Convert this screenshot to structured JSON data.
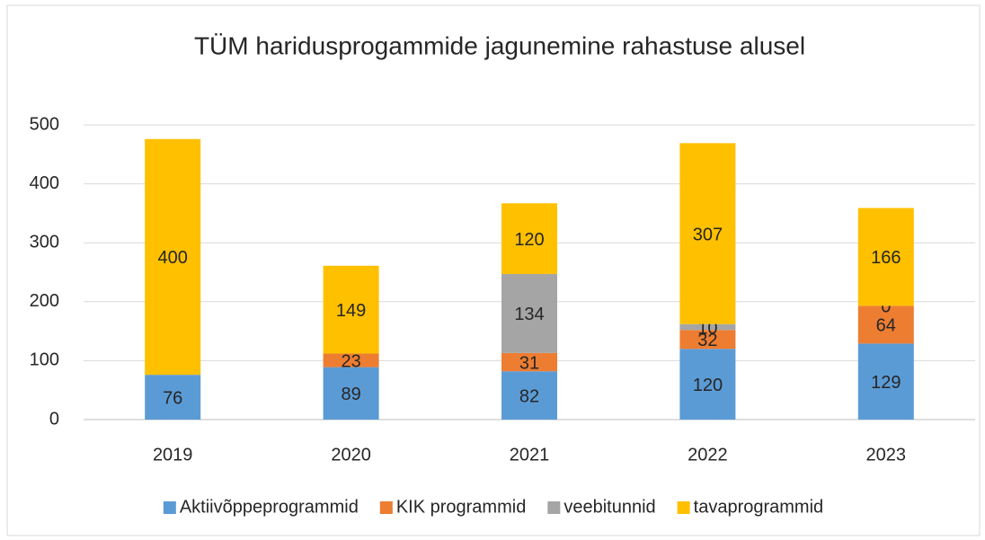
{
  "chart_data": {
    "type": "stacked_bar",
    "title": "TÜM haridusprogammide jagunemine rahastuse alusel",
    "categories": [
      "2019",
      "2020",
      "2021",
      "2022",
      "2023"
    ],
    "series": [
      {
        "name": "Aktiivõppeprogrammid",
        "color": "#5b9bd5",
        "values": [
          76,
          89,
          82,
          120,
          129
        ]
      },
      {
        "name": "KIK programmid",
        "color": "#ed7d31",
        "values": [
          null,
          23,
          31,
          32,
          64
        ]
      },
      {
        "name": "veebitunnid",
        "color": "#a5a5a5",
        "values": [
          null,
          null,
          134,
          10,
          0
        ]
      },
      {
        "name": "tavaprogrammid",
        "color": "#ffc000",
        "values": [
          400,
          149,
          120,
          307,
          166
        ]
      }
    ],
    "ylim": [
      0,
      500
    ],
    "yticks": [
      0,
      100,
      200,
      300,
      400,
      500
    ],
    "grid": true,
    "legend": "bottom"
  }
}
